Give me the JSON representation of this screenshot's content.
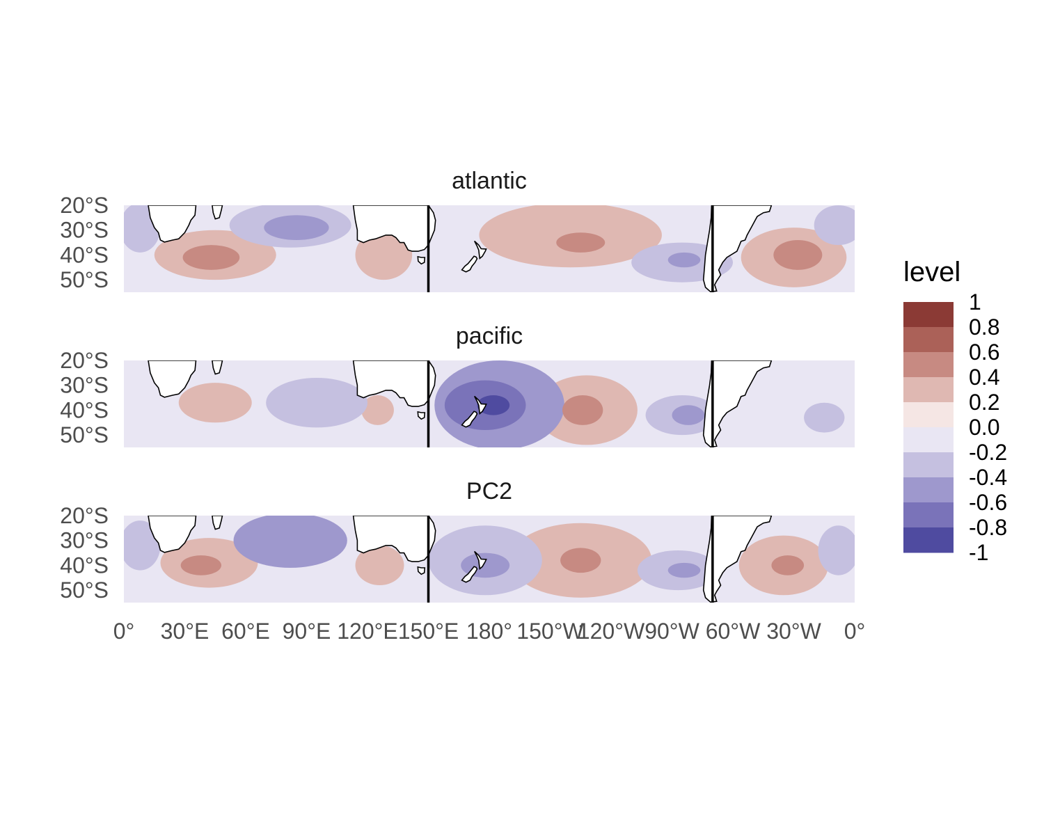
{
  "chart_data": {
    "type": "heatmap",
    "panels": [
      {
        "name": "atlantic",
        "blobs": [
          {
            "lon": 45,
            "lat": -40,
            "rx": 30,
            "ry": 10,
            "level": 0.35
          },
          {
            "lon": 43,
            "lat": -41,
            "rx": 14,
            "ry": 5,
            "level": 0.55
          },
          {
            "lon": 82,
            "lat": -28,
            "rx": 30,
            "ry": 9,
            "level": -0.4
          },
          {
            "lon": 85,
            "lat": -29,
            "rx": 16,
            "ry": 5,
            "level": -0.6
          },
          {
            "lon": 8,
            "lat": -29,
            "rx": 10,
            "ry": 10,
            "level": -0.3
          },
          {
            "lon": 128,
            "lat": -40,
            "rx": 14,
            "ry": 10,
            "level": 0.25
          },
          {
            "lon": 220,
            "lat": -32,
            "rx": 45,
            "ry": 13,
            "level": 0.25
          },
          {
            "lon": 225,
            "lat": -35,
            "rx": 12,
            "ry": 4,
            "level": 0.45
          },
          {
            "lon": 275,
            "lat": -43,
            "rx": 25,
            "ry": 8,
            "level": -0.3
          },
          {
            "lon": 276,
            "lat": -42,
            "rx": 8,
            "ry": 3,
            "level": -0.5
          },
          {
            "lon": 330,
            "lat": -41,
            "rx": 26,
            "ry": 12,
            "level": 0.35
          },
          {
            "lon": 332,
            "lat": -40,
            "rx": 12,
            "ry": 6,
            "level": 0.55
          },
          {
            "lon": 352,
            "lat": -28,
            "rx": 12,
            "ry": 8,
            "level": -0.35
          }
        ]
      },
      {
        "name": "pacific",
        "blobs": [
          {
            "lon": 185,
            "lat": -38,
            "rx": 32,
            "ry": 18,
            "level": -0.45
          },
          {
            "lon": 178,
            "lat": -38,
            "rx": 20,
            "ry": 10,
            "level": -0.65
          },
          {
            "lon": 182,
            "lat": -38,
            "rx": 8,
            "ry": 4,
            "level": -0.85
          },
          {
            "lon": 228,
            "lat": -40,
            "rx": 25,
            "ry": 14,
            "level": 0.3
          },
          {
            "lon": 226,
            "lat": -40,
            "rx": 10,
            "ry": 6,
            "level": 0.5
          },
          {
            "lon": 275,
            "lat": -42,
            "rx": 18,
            "ry": 8,
            "level": -0.35
          },
          {
            "lon": 278,
            "lat": -42,
            "rx": 8,
            "ry": 4,
            "level": -0.6
          },
          {
            "lon": 95,
            "lat": -37,
            "rx": 25,
            "ry": 10,
            "level": -0.25
          },
          {
            "lon": 45,
            "lat": -37,
            "rx": 18,
            "ry": 8,
            "level": 0.2
          },
          {
            "lon": 125,
            "lat": -40,
            "rx": 8,
            "ry": 6,
            "level": 0.2
          },
          {
            "lon": 345,
            "lat": -43,
            "rx": 10,
            "ry": 6,
            "level": -0.25
          }
        ]
      },
      {
        "name": "PC2",
        "blobs": [
          {
            "lon": 42,
            "lat": -39,
            "rx": 24,
            "ry": 10,
            "level": 0.3
          },
          {
            "lon": 38,
            "lat": -40,
            "rx": 10,
            "ry": 4,
            "level": 0.5
          },
          {
            "lon": 82,
            "lat": -30,
            "rx": 28,
            "ry": 11,
            "level": -0.45
          },
          {
            "lon": 8,
            "lat": -32,
            "rx": 10,
            "ry": 10,
            "level": -0.3
          },
          {
            "lon": 178,
            "lat": -38,
            "rx": 28,
            "ry": 14,
            "level": -0.35
          },
          {
            "lon": 178,
            "lat": -40,
            "rx": 12,
            "ry": 5,
            "level": -0.55
          },
          {
            "lon": 126,
            "lat": -40,
            "rx": 12,
            "ry": 8,
            "level": 0.25
          },
          {
            "lon": 225,
            "lat": -38,
            "rx": 35,
            "ry": 15,
            "level": 0.3
          },
          {
            "lon": 225,
            "lat": -38,
            "rx": 10,
            "ry": 5,
            "level": 0.5
          },
          {
            "lon": 273,
            "lat": -42,
            "rx": 20,
            "ry": 8,
            "level": -0.4
          },
          {
            "lon": 276,
            "lat": -42,
            "rx": 8,
            "ry": 3,
            "level": -0.6
          },
          {
            "lon": 325,
            "lat": -40,
            "rx": 22,
            "ry": 12,
            "level": 0.25
          },
          {
            "lon": 327,
            "lat": -40,
            "rx": 8,
            "ry": 4,
            "level": 0.45
          },
          {
            "lon": 352,
            "lat": -34,
            "rx": 10,
            "ry": 10,
            "level": -0.3
          }
        ]
      }
    ],
    "xlim": [
      0,
      360
    ],
    "ylim": [
      -55,
      -20
    ],
    "x_ticks": [
      {
        "lon": 0,
        "label": "0°"
      },
      {
        "lon": 30,
        "label": "30°E"
      },
      {
        "lon": 60,
        "label": "60°E"
      },
      {
        "lon": 90,
        "label": "90°E"
      },
      {
        "lon": 120,
        "label": "120°E"
      },
      {
        "lon": 150,
        "label": "150°E"
      },
      {
        "lon": 180,
        "label": "180°"
      },
      {
        "lon": 210,
        "label": "150°W"
      },
      {
        "lon": 240,
        "label": "120°W"
      },
      {
        "lon": 270,
        "label": "90°W"
      },
      {
        "lon": 300,
        "label": "60°W"
      },
      {
        "lon": 330,
        "label": "30°W"
      },
      {
        "lon": 360,
        "label": "0°"
      }
    ],
    "y_ticks": [
      {
        "lat": -20,
        "label": "20°S"
      },
      {
        "lat": -30,
        "label": "30°S"
      },
      {
        "lat": -40,
        "label": "40°S"
      },
      {
        "lat": -50,
        "label": "50°S"
      }
    ],
    "divider_lons": [
      150,
      290
    ],
    "legend": {
      "title": "level",
      "position": "right",
      "labels": [
        "1",
        "0.8",
        "0.6",
        "0.4",
        "0.2",
        "0.0",
        "-0.2",
        "-0.4",
        "-0.6",
        "-0.8",
        "-1"
      ],
      "bins": [
        {
          "lo": 0.8,
          "hi": 1.0,
          "color": "#8b3a35"
        },
        {
          "lo": 0.6,
          "hi": 0.8,
          "color": "#ab6158"
        },
        {
          "lo": 0.4,
          "hi": 0.6,
          "color": "#c78a82"
        },
        {
          "lo": 0.2,
          "hi": 0.4,
          "color": "#dfb8b2"
        },
        {
          "lo": 0.0,
          "hi": 0.2,
          "color": "#f5e6e4"
        },
        {
          "lo": -0.2,
          "hi": 0.0,
          "color": "#e9e6f3"
        },
        {
          "lo": -0.4,
          "hi": -0.2,
          "color": "#c5c0e0"
        },
        {
          "lo": -0.6,
          "hi": -0.4,
          "color": "#9e98cd"
        },
        {
          "lo": -0.8,
          "hi": -0.6,
          "color": "#7a73b9"
        },
        {
          "lo": -1.0,
          "hi": -0.8,
          "color": "#4f4ba0"
        }
      ]
    }
  }
}
